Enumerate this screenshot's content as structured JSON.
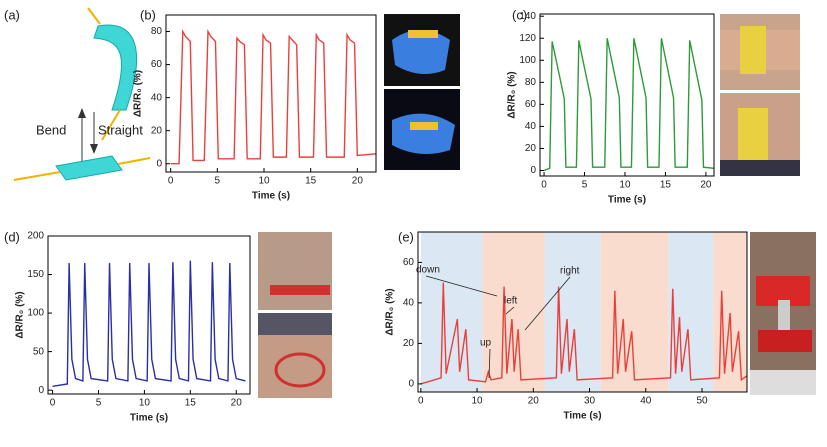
{
  "diagram": {
    "label": "(a)",
    "texts": [
      "Bend",
      "Straight"
    ]
  },
  "chart_data": [
    {
      "type": "line",
      "panel": "(b)",
      "xlabel": "Time (s)",
      "ylabel": "ΔR/R₀ (%)",
      "x": [
        0,
        0.9,
        1.3,
        1.6,
        2.1,
        2.4,
        3.6,
        4.0,
        4.3,
        4.8,
        5.1,
        6.8,
        7.1,
        7.4,
        7.9,
        8.2,
        9.6,
        9.9,
        10.2,
        10.7,
        11.0,
        12.4,
        12.7,
        13.0,
        13.5,
        13.8,
        15.3,
        15.6,
        15.9,
        16.4,
        16.7,
        18.6,
        18.9,
        19.2,
        19.7,
        20.0,
        22
      ],
      "series": [
        {
          "color": "#e8413c",
          "values": [
            0,
            0,
            80,
            77,
            74,
            2,
            2,
            80,
            77,
            74,
            3,
            3,
            76,
            74,
            72,
            3,
            3,
            78,
            75,
            73,
            4,
            4,
            77,
            75,
            72,
            4,
            4,
            78,
            75,
            73,
            4,
            4,
            78,
            75,
            73,
            5,
            6
          ]
        }
      ],
      "xlim": [
        -0.5,
        22
      ],
      "ylim": [
        -5,
        90
      ],
      "xticks": [
        0,
        5,
        10,
        15,
        20
      ],
      "yticks": [
        0,
        20,
        40,
        60,
        80
      ]
    },
    {
      "type": "line",
      "panel": "(c)",
      "xlabel": "Time (s)",
      "ylabel": "ΔR/R₀ (%)",
      "x": [
        0,
        0.7,
        1.0,
        1.5,
        2.5,
        2.7,
        4.0,
        4.3,
        4.8,
        5.8,
        6.0,
        7.5,
        7.8,
        8.3,
        9.3,
        9.5,
        10.8,
        11.1,
        11.6,
        12.6,
        12.8,
        14.2,
        14.5,
        15.0,
        16.0,
        16.2,
        17.7,
        18.0,
        18.5,
        19.5,
        19.7,
        21
      ],
      "series": [
        {
          "color": "#2e9a3a",
          "values": [
            0,
            2,
            117,
            100,
            65,
            3,
            3,
            118,
            100,
            65,
            3,
            3,
            120,
            102,
            66,
            3,
            3,
            120,
            102,
            66,
            3,
            3,
            120,
            102,
            66,
            3,
            3,
            118,
            100,
            64,
            3,
            2
          ]
        }
      ],
      "xlim": [
        -0.5,
        21
      ],
      "ylim": [
        -5,
        142
      ],
      "xticks": [
        0,
        5,
        10,
        15,
        20
      ],
      "yticks": [
        0,
        20,
        40,
        60,
        80,
        100,
        120,
        140
      ]
    },
    {
      "type": "line",
      "panel": "(d)",
      "xlabel": "Time (s)",
      "ylabel": "ΔR/R₀ (%)",
      "x": [
        0,
        1.6,
        1.8,
        2.1,
        2.5,
        3.3,
        3.5,
        3.8,
        4.2,
        6.0,
        6.2,
        6.5,
        6.9,
        8.2,
        8.4,
        8.7,
        9.1,
        10.3,
        10.5,
        10.8,
        11.2,
        12.9,
        13.1,
        13.4,
        13.8,
        14.8,
        15.0,
        15.3,
        15.7,
        17.2,
        17.4,
        17.7,
        18.1,
        19.1,
        19.3,
        19.6,
        20.0,
        21
      ],
      "series": [
        {
          "color": "#2a2fa8",
          "values": [
            5,
            8,
            165,
            40,
            15,
            12,
            165,
            40,
            15,
            12,
            165,
            40,
            15,
            12,
            165,
            40,
            15,
            12,
            165,
            40,
            15,
            12,
            166,
            40,
            15,
            12,
            168,
            40,
            15,
            12,
            166,
            40,
            15,
            12,
            165,
            40,
            15,
            12
          ]
        }
      ],
      "xlim": [
        -0.5,
        21.5
      ],
      "ylim": [
        -5,
        200
      ],
      "xticks": [
        0,
        5,
        10,
        15,
        20
      ],
      "yticks": [
        0,
        50,
        100,
        150,
        200
      ]
    },
    {
      "type": "line",
      "panel": "(e)",
      "xlabel": "Time (s)",
      "ylabel": "ΔR/R₀ (%)",
      "x": [
        0,
        3.6,
        4.0,
        4.5,
        6.5,
        6.9,
        8.0,
        8.5,
        11.5,
        12.0,
        12.5,
        14.4,
        14.8,
        15.3,
        16.2,
        16.6,
        17.3,
        17.8,
        24.1,
        24.5,
        25.0,
        26.0,
        26.4,
        27.3,
        27.8,
        34.1,
        34.5,
        35.0,
        36.0,
        36.4,
        37.5,
        38.0,
        44.4,
        44.8,
        45.3,
        46.0,
        46.4,
        47.5,
        48.0,
        53.1,
        53.5,
        54.0,
        55.0,
        55.4,
        56.5,
        57.0,
        58
      ],
      "series": [
        {
          "color": "#e8413c",
          "values": [
            0,
            3,
            50,
            5,
            32,
            6,
            27,
            2,
            1,
            6,
            2,
            3,
            48,
            5,
            32,
            6,
            27,
            2,
            3,
            48,
            5,
            32,
            6,
            27,
            2,
            3,
            46,
            5,
            32,
            6,
            26,
            2,
            3,
            47,
            5,
            33,
            6,
            27,
            2,
            3,
            46,
            5,
            35,
            6,
            26,
            2,
            4
          ]
        }
      ],
      "bands": [
        {
          "x0": 0,
          "x1": 11,
          "color": "#dce7f4"
        },
        {
          "x0": 11,
          "x1": 22,
          "color": "#f9dccd"
        },
        {
          "x0": 22,
          "x1": 32,
          "color": "#dce7f4"
        },
        {
          "x0": 32,
          "x1": 44,
          "color": "#f9dccd"
        },
        {
          "x0": 44,
          "x1": 52,
          "color": "#dce7f4"
        },
        {
          "x0": 52,
          "x1": 58,
          "color": "#f9dccd"
        }
      ],
      "annotations": [
        "down",
        "left",
        "right",
        "up"
      ],
      "xlim": [
        -0.5,
        58
      ],
      "ylim": [
        -4,
        75
      ],
      "xticks": [
        0,
        10,
        20,
        30,
        40,
        50
      ],
      "yticks": [
        0,
        20,
        40,
        60
      ]
    }
  ]
}
